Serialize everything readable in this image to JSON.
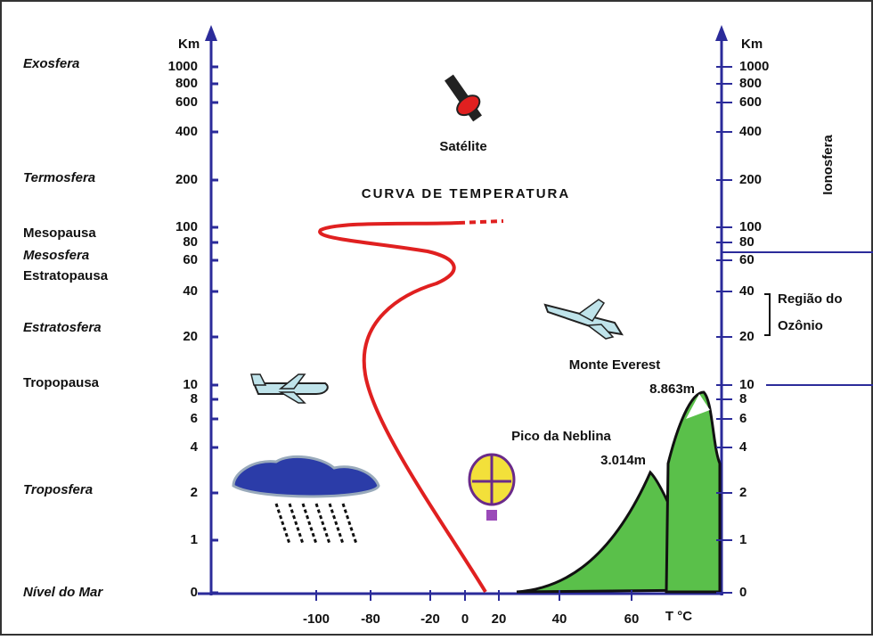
{
  "left_axis": {
    "unit": "Km",
    "ticks": [
      "1000",
      "800",
      "600",
      "400",
      "200",
      "100",
      "80",
      "60",
      "40",
      "20",
      "10",
      "8",
      "6",
      "4",
      "2",
      "1",
      "0"
    ]
  },
  "right_axis": {
    "unit": "Km",
    "ticks": [
      "1000",
      "800",
      "600",
      "400",
      "200",
      "100",
      "80",
      "60",
      "40",
      "20",
      "10",
      "8",
      "6",
      "4",
      "2",
      "1",
      "0"
    ],
    "band": "Ionosfera",
    "ozone": [
      "Região do",
      "Ozônio"
    ]
  },
  "x_axis": {
    "ticks": [
      "-100",
      "-80",
      "-20",
      "0",
      "20",
      "40",
      "60"
    ],
    "unit": "T °C"
  },
  "layers": [
    "Exosfera",
    "Termosfera",
    "Mesopausa",
    "Mesosfera",
    "Estratopausa",
    "Estratosfera",
    "Tropopausa",
    "Troposfera",
    "Nível do Mar"
  ],
  "labels": {
    "satellite": "Satélite",
    "curve": "CURVA DE TEMPERATURA",
    "everest": "Monte Everest",
    "everest_height": "8.863m",
    "neblina": "Pico da Neblina",
    "neblina_height": "3.014m"
  }
}
